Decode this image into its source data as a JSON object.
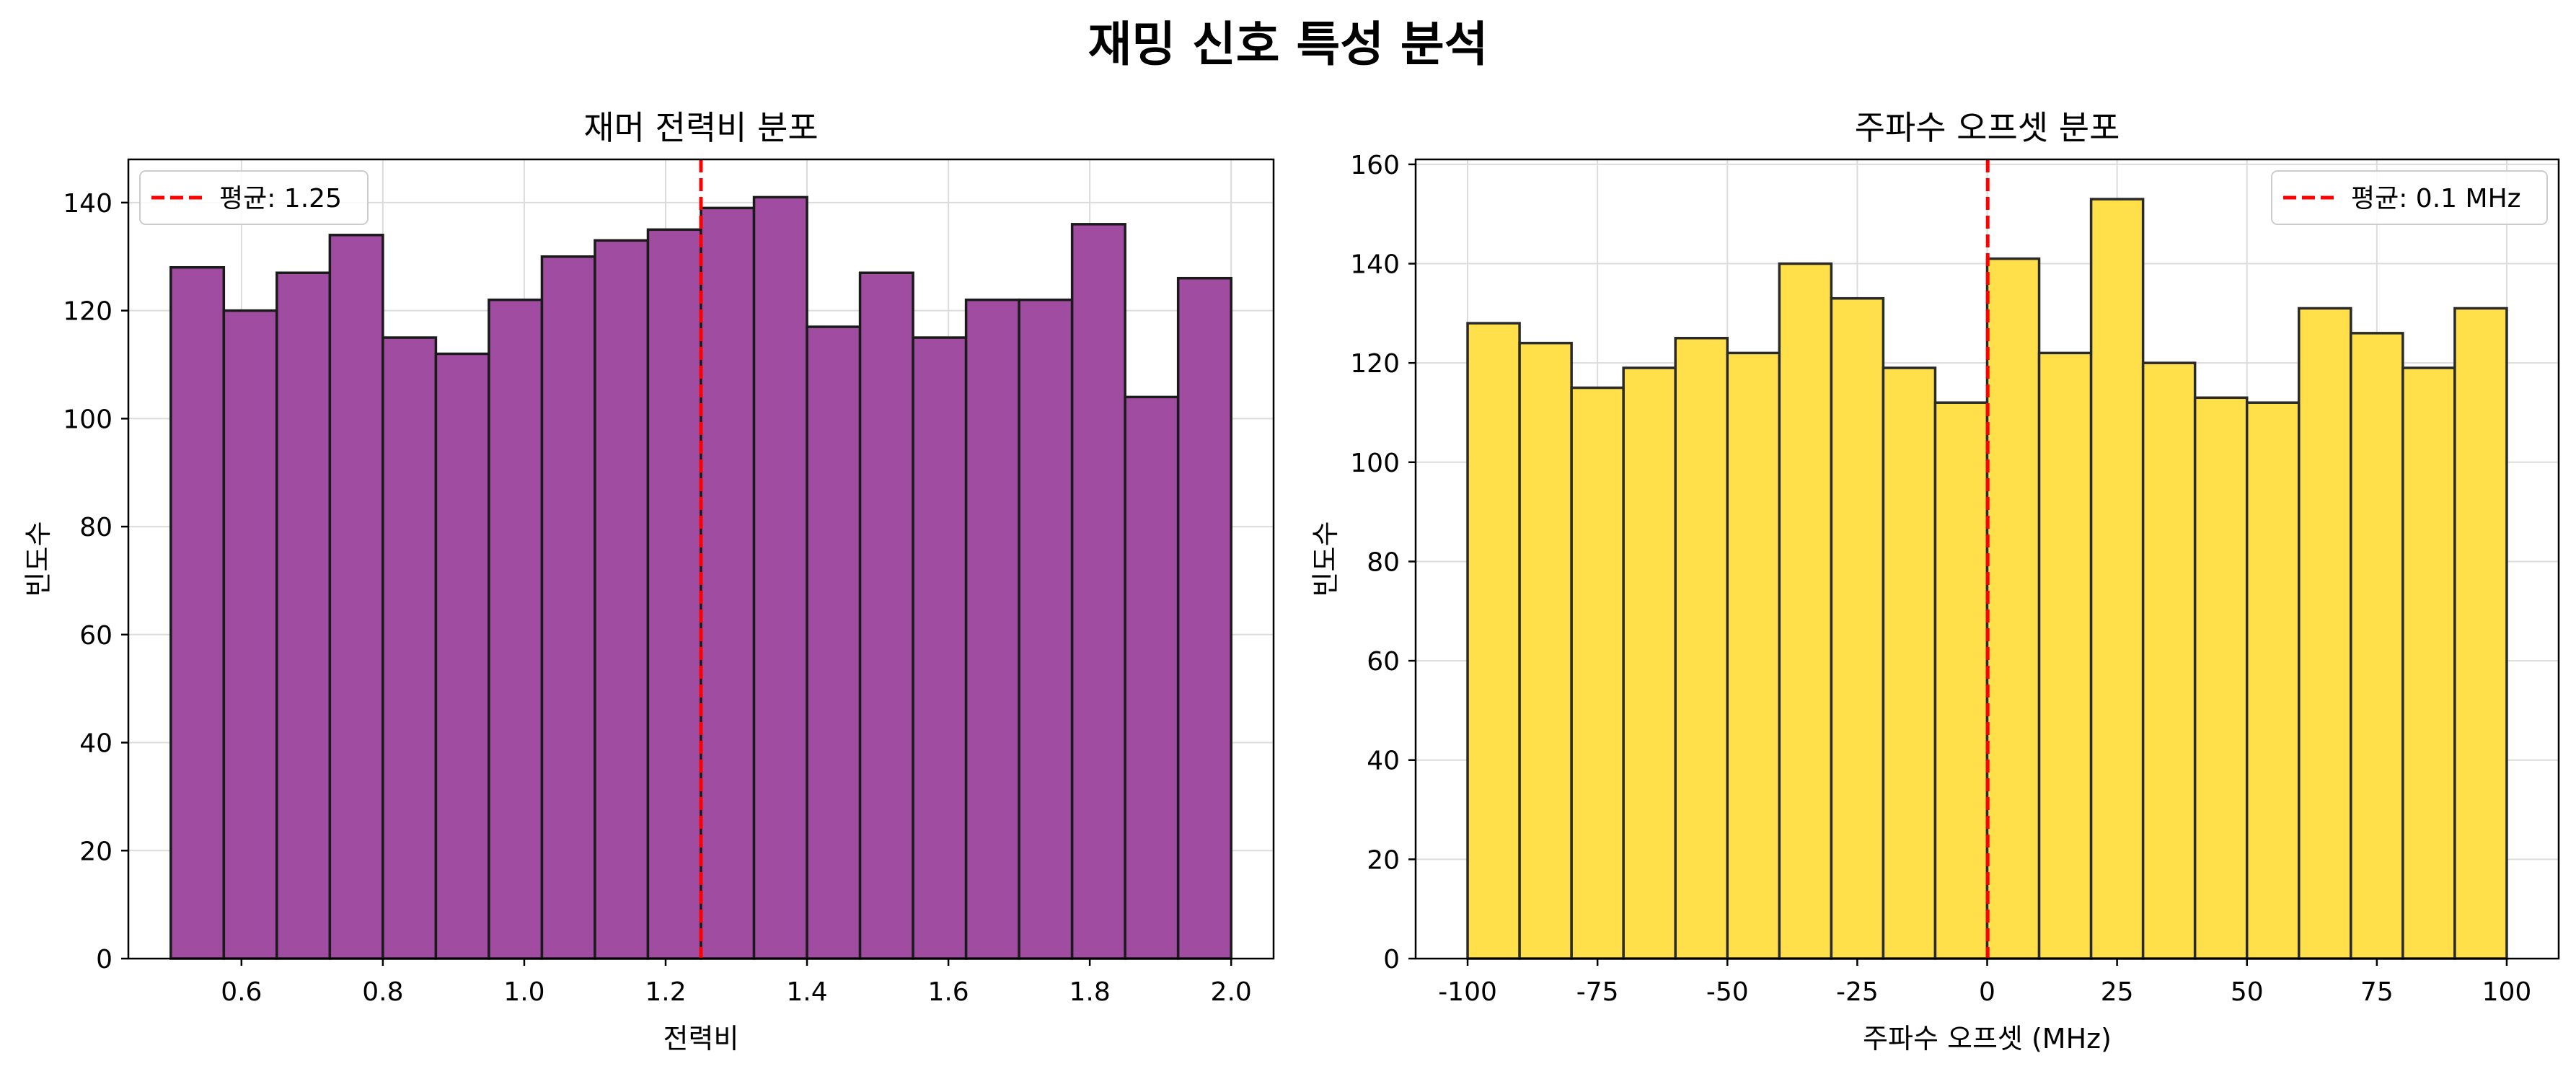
{
  "suptitle": "재밍 신호 특성 분석",
  "chart_data": [
    {
      "type": "bar",
      "title": "재머 전력비 분포",
      "xlabel": "전력비",
      "ylabel": "빈도수",
      "xlim": [
        0.44,
        2.06
      ],
      "ylim": [
        0,
        148
      ],
      "xticks": [
        0.6,
        0.8,
        1.0,
        1.2,
        1.4,
        1.6,
        1.8,
        2.0
      ],
      "xtick_labels": [
        "0.6",
        "0.8",
        "1.0",
        "1.2",
        "1.4",
        "1.6",
        "1.8",
        "2.0"
      ],
      "yticks": [
        0,
        20,
        40,
        60,
        80,
        100,
        120,
        140
      ],
      "bin_edges": [
        0.5,
        0.575,
        0.65,
        0.725,
        0.8,
        0.875,
        0.95,
        1.025,
        1.1,
        1.175,
        1.25,
        1.325,
        1.4,
        1.475,
        1.55,
        1.625,
        1.7,
        1.775,
        1.85,
        1.925,
        2.0
      ],
      "values": [
        128,
        120,
        127,
        134,
        115,
        112,
        122,
        130,
        133,
        135,
        139,
        141,
        117,
        127,
        115,
        122,
        122,
        136,
        104,
        126
      ],
      "bar_color": "#a04ca0",
      "edge_color": "#1a1a1a",
      "mean_line": {
        "value": 1.25,
        "label": "평균: 1.25",
        "color": "#ff0000"
      },
      "legend_position": "upper-left",
      "grid": true
    },
    {
      "type": "bar",
      "title": "주파수 오프셋 분포",
      "xlabel": "주파수 오프셋 (MHz)",
      "ylabel": "빈도수",
      "xlim": [
        -110,
        110
      ],
      "ylim": [
        0,
        161
      ],
      "xticks": [
        -100,
        -75,
        -50,
        -25,
        0,
        25,
        50,
        75,
        100
      ],
      "xtick_labels": [
        "-100",
        "-75",
        "-50",
        "-25",
        "0",
        "25",
        "50",
        "75",
        "100"
      ],
      "yticks": [
        0,
        20,
        40,
        60,
        80,
        100,
        120,
        140,
        160
      ],
      "bin_edges": [
        -100,
        -90,
        -80,
        -70,
        -60,
        -50,
        -40,
        -30,
        -20,
        -10,
        0,
        10,
        20,
        30,
        40,
        50,
        60,
        70,
        80,
        90,
        100
      ],
      "values": [
        128,
        124,
        115,
        119,
        125,
        122,
        140,
        133,
        119,
        112,
        141,
        122,
        153,
        120,
        113,
        112,
        131,
        126,
        119,
        131
      ],
      "bar_color": "#ffe04a",
      "edge_color": "#2a2a2a",
      "mean_line": {
        "value": 0.1,
        "label": "평균: 0.1 MHz",
        "color": "#ff0000"
      },
      "legend_position": "upper-right",
      "grid": true
    }
  ]
}
